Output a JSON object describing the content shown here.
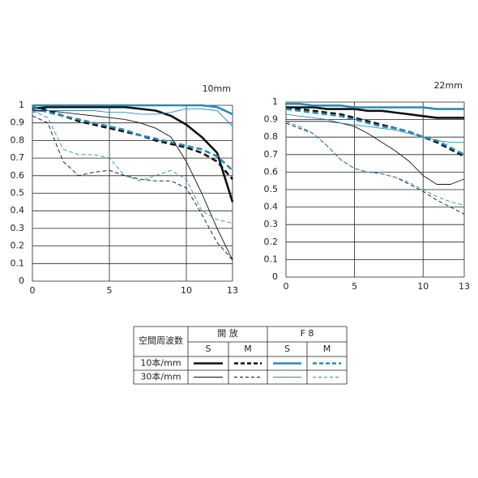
{
  "chart_data": [
    {
      "type": "line",
      "title": "10mm",
      "x": [
        0,
        1,
        2,
        3,
        4,
        5,
        6,
        7,
        8,
        9,
        10,
        11,
        12,
        13
      ],
      "xlim": [
        0,
        13
      ],
      "xticks": [
        0,
        5,
        10,
        13
      ],
      "ylim": [
        0,
        1
      ],
      "yticks": [
        0,
        0.1,
        0.2,
        0.3,
        0.4,
        0.5,
        0.6,
        0.7,
        0.8,
        0.9,
        1
      ],
      "grid": true,
      "series": [
        {
          "color": "#111111",
          "dashed": false,
          "width": 2.6,
          "values": [
            0.98,
            0.99,
            0.99,
            0.99,
            0.99,
            0.99,
            0.99,
            0.98,
            0.97,
            0.94,
            0.89,
            0.82,
            0.73,
            0.45
          ]
        },
        {
          "color": "#111111",
          "dashed": true,
          "width": 2.6,
          "values": [
            0.99,
            0.97,
            0.94,
            0.91,
            0.89,
            0.87,
            0.85,
            0.83,
            0.8,
            0.78,
            0.76,
            0.73,
            0.68,
            0.58
          ]
        },
        {
          "color": "#2a8ab8",
          "dashed": false,
          "width": 2.6,
          "values": [
            1,
            1,
            1,
            1,
            1,
            1,
            1,
            1,
            1,
            1,
            1,
            1,
            0.99,
            0.95
          ]
        },
        {
          "color": "#2a8ab8",
          "dashed": true,
          "width": 2.6,
          "values": [
            0.99,
            0.96,
            0.94,
            0.92,
            0.9,
            0.88,
            0.86,
            0.83,
            0.81,
            0.79,
            0.77,
            0.75,
            0.71,
            0.63
          ]
        },
        {
          "color": "#111111",
          "dashed": false,
          "width": 0.9,
          "values": [
            0.97,
            0.97,
            0.96,
            0.95,
            0.94,
            0.93,
            0.92,
            0.9,
            0.87,
            0.82,
            0.68,
            0.5,
            0.3,
            0.12
          ]
        },
        {
          "color": "#111111",
          "dashed": true,
          "width": 0.9,
          "values": [
            0.94,
            0.9,
            0.68,
            0.6,
            0.62,
            0.63,
            0.6,
            0.58,
            0.57,
            0.57,
            0.53,
            0.38,
            0.22,
            0.12
          ]
        },
        {
          "color": "#2a8ab8",
          "dashed": false,
          "width": 0.9,
          "values": [
            0.96,
            0.97,
            0.97,
            0.97,
            0.97,
            0.96,
            0.96,
            0.95,
            0.95,
            0.96,
            0.98,
            0.98,
            0.97,
            0.88
          ]
        },
        {
          "color": "#2a8ab8",
          "dashed": true,
          "width": 0.9,
          "values": [
            0.97,
            0.93,
            0.75,
            0.72,
            0.72,
            0.7,
            0.6,
            0.57,
            0.6,
            0.63,
            0.58,
            0.4,
            0.35,
            0.33
          ]
        }
      ]
    },
    {
      "type": "line",
      "title": "22mm",
      "x": [
        0,
        1,
        2,
        3,
        4,
        5,
        6,
        7,
        8,
        9,
        10,
        11,
        12,
        13
      ],
      "xlim": [
        0,
        13
      ],
      "xticks": [
        0,
        5,
        10,
        13
      ],
      "ylim": [
        0,
        1
      ],
      "yticks": [
        0,
        0.1,
        0.2,
        0.3,
        0.4,
        0.5,
        0.6,
        0.7,
        0.8,
        0.9,
        1
      ],
      "grid": true,
      "series": [
        {
          "color": "#111111",
          "dashed": false,
          "width": 2.6,
          "values": [
            0.97,
            0.97,
            0.97,
            0.96,
            0.96,
            0.96,
            0.95,
            0.95,
            0.94,
            0.93,
            0.92,
            0.91,
            0.91,
            0.91
          ]
        },
        {
          "color": "#111111",
          "dashed": true,
          "width": 2.6,
          "values": [
            0.96,
            0.96,
            0.95,
            0.94,
            0.93,
            0.91,
            0.89,
            0.87,
            0.85,
            0.83,
            0.8,
            0.77,
            0.73,
            0.69
          ]
        },
        {
          "color": "#2a8ab8",
          "dashed": false,
          "width": 2.6,
          "values": [
            0.99,
            0.99,
            0.98,
            0.98,
            0.98,
            0.97,
            0.97,
            0.97,
            0.97,
            0.97,
            0.97,
            0.96,
            0.96,
            0.96
          ]
        },
        {
          "color": "#2a8ab8",
          "dashed": true,
          "width": 2.6,
          "values": [
            0.96,
            0.95,
            0.94,
            0.93,
            0.92,
            0.9,
            0.88,
            0.86,
            0.85,
            0.83,
            0.8,
            0.78,
            0.74,
            0.7
          ]
        },
        {
          "color": "#111111",
          "dashed": false,
          "width": 0.9,
          "values": [
            0.89,
            0.89,
            0.89,
            0.89,
            0.88,
            0.86,
            0.82,
            0.77,
            0.72,
            0.66,
            0.58,
            0.53,
            0.53,
            0.56
          ]
        },
        {
          "color": "#111111",
          "dashed": true,
          "width": 0.9,
          "values": [
            0.88,
            0.85,
            0.82,
            0.75,
            0.67,
            0.62,
            0.6,
            0.59,
            0.57,
            0.53,
            0.49,
            0.44,
            0.4,
            0.36
          ]
        },
        {
          "color": "#2a8ab8",
          "dashed": false,
          "width": 0.9,
          "values": [
            0.93,
            0.92,
            0.91,
            0.9,
            0.88,
            0.87,
            0.86,
            0.85,
            0.84,
            0.82,
            0.8,
            0.78,
            0.77,
            0.77
          ]
        },
        {
          "color": "#2a8ab8",
          "dashed": true,
          "width": 0.9,
          "values": [
            0.89,
            0.86,
            0.82,
            0.75,
            0.67,
            0.62,
            0.6,
            0.59,
            0.57,
            0.54,
            0.5,
            0.46,
            0.43,
            0.41
          ]
        }
      ]
    }
  ],
  "legend_table": {
    "corner_header": "空間周波数",
    "groups": [
      "開 放",
      "F 8"
    ],
    "subheaders": [
      "S",
      "M",
      "S",
      "M"
    ],
    "rows": [
      "10本/mm",
      "30本/mm"
    ]
  }
}
